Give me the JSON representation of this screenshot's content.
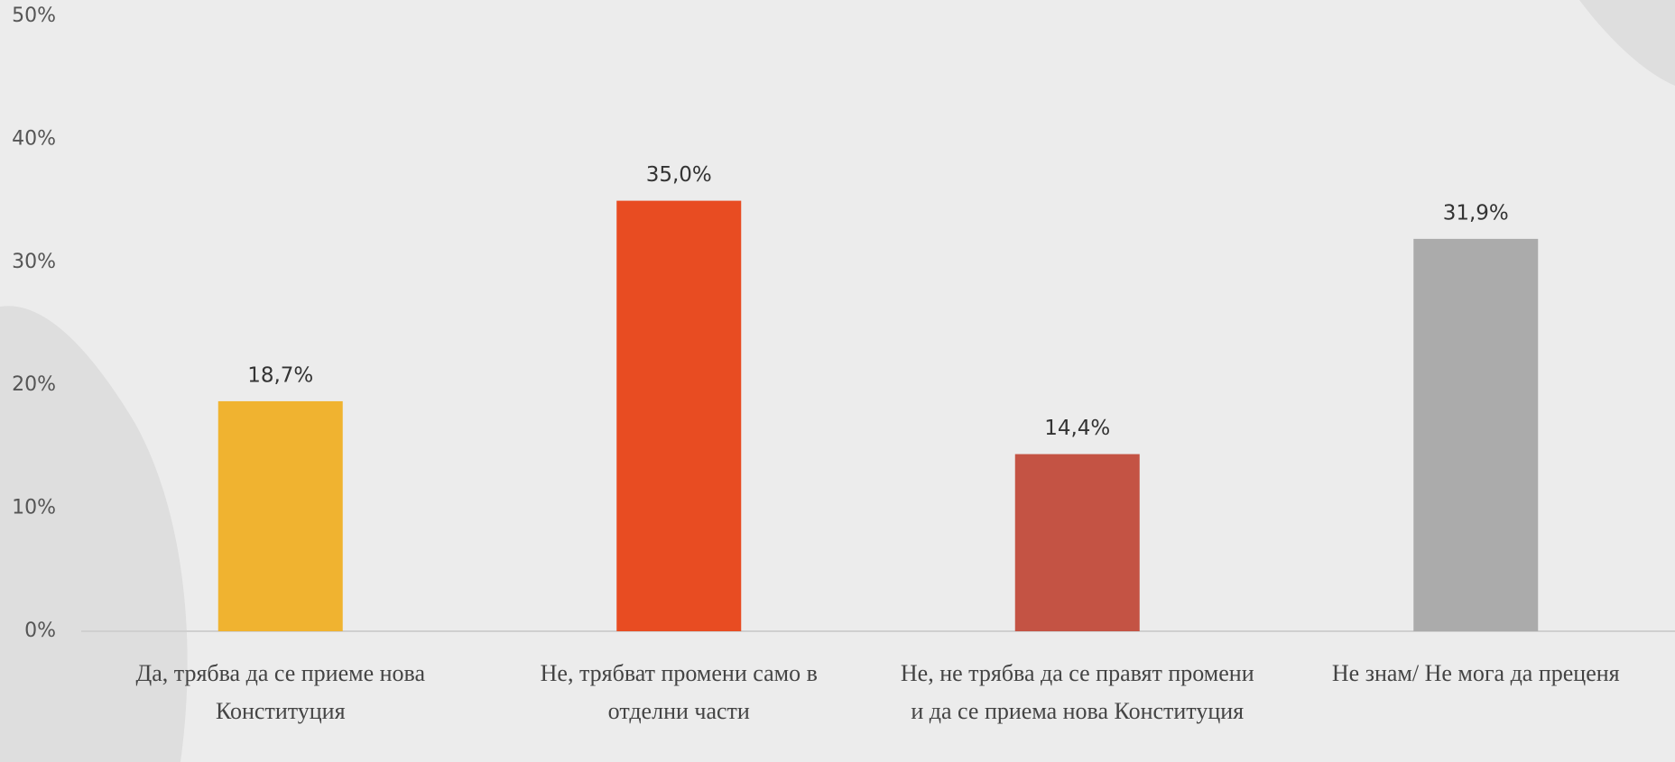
{
  "chart_data": {
    "type": "bar",
    "categories": [
      "Да, трябва да се приеме нова Конституция",
      "Не, трябват промени  само в отделни части",
      "Не, не трябва да се правят промени и да се приема нова Конституция",
      "Не знам/ Не мога да преценя"
    ],
    "values": [
      18.7,
      35.0,
      14.4,
      31.9
    ],
    "value_labels": [
      "18,7%",
      "35,0%",
      "14,4%",
      "31,9%"
    ],
    "colors": [
      "#f0b330",
      "#e84c22",
      "#c45344",
      "#ababab"
    ],
    "ylim": [
      0,
      50
    ],
    "yticks": [
      {
        "value": 0,
        "label": "0%"
      },
      {
        "value": 10,
        "label": "10%"
      },
      {
        "value": 20,
        "label": "20%"
      },
      {
        "value": 30,
        "label": "30%"
      },
      {
        "value": 40,
        "label": "40%"
      },
      {
        "value": 50,
        "label": "50%"
      }
    ]
  }
}
